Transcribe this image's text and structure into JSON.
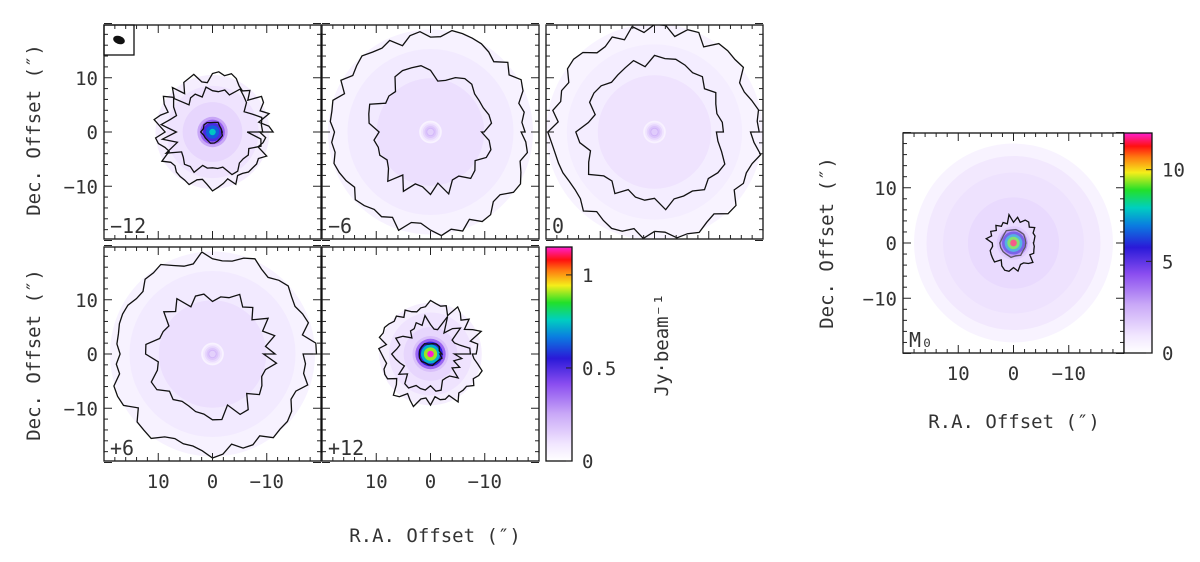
{
  "chart_data": [
    {
      "type": "heatmap",
      "description_kind": "channel maps",
      "xlabel": "R.A. Offset (″)",
      "ylabel": "Dec. Offset (″)",
      "xticks": [
        "10",
        "0",
        "−10"
      ],
      "yticks": [
        "10",
        "0",
        "−10"
      ],
      "xlim": [
        20,
        -20
      ],
      "ylim": [
        -20,
        20
      ],
      "colorbar": {
        "label": "Jy·beam⁻¹",
        "ticks": [
          "0",
          "0.5",
          "1"
        ],
        "range": [
          0,
          1.15
        ]
      },
      "panels": [
        {
          "label": "−12",
          "peak": 0.75,
          "halo": 0.12,
          "shell": [
            10,
            8
          ],
          "clump": 2.0
        },
        {
          "label": "−6",
          "peak": 0.15,
          "halo": 0.1,
          "shell": [
            18,
            11
          ],
          "clump": 0
        },
        {
          "label": "0",
          "peak": 0.16,
          "halo": 0.09,
          "shell": [
            19,
            13
          ],
          "clump": 0
        },
        {
          "label": "+6",
          "peak": 0.15,
          "halo": 0.1,
          "shell": [
            18,
            11
          ],
          "clump": 0
        },
        {
          "label": "+12",
          "peak": 1.15,
          "halo": 0.12,
          "shell": [
            9,
            6
          ],
          "clump": 2.0
        }
      ]
    },
    {
      "type": "heatmap",
      "description_kind": "moment-0 map",
      "panel_label": "M₀",
      "xlabel": "R.A. Offset (″)",
      "ylabel": "Dec. Offset (″)",
      "xticks": [
        "10",
        "0",
        "−10"
      ],
      "yticks": [
        "10",
        "0",
        "−10"
      ],
      "xlim": [
        20,
        -20
      ],
      "ylim": [
        -20,
        20
      ],
      "colorbar": {
        "ticks": [
          "0",
          "5",
          "10"
        ],
        "range": [
          0,
          12
        ]
      },
      "peak": 11.5,
      "halo": 1.2
    }
  ]
}
